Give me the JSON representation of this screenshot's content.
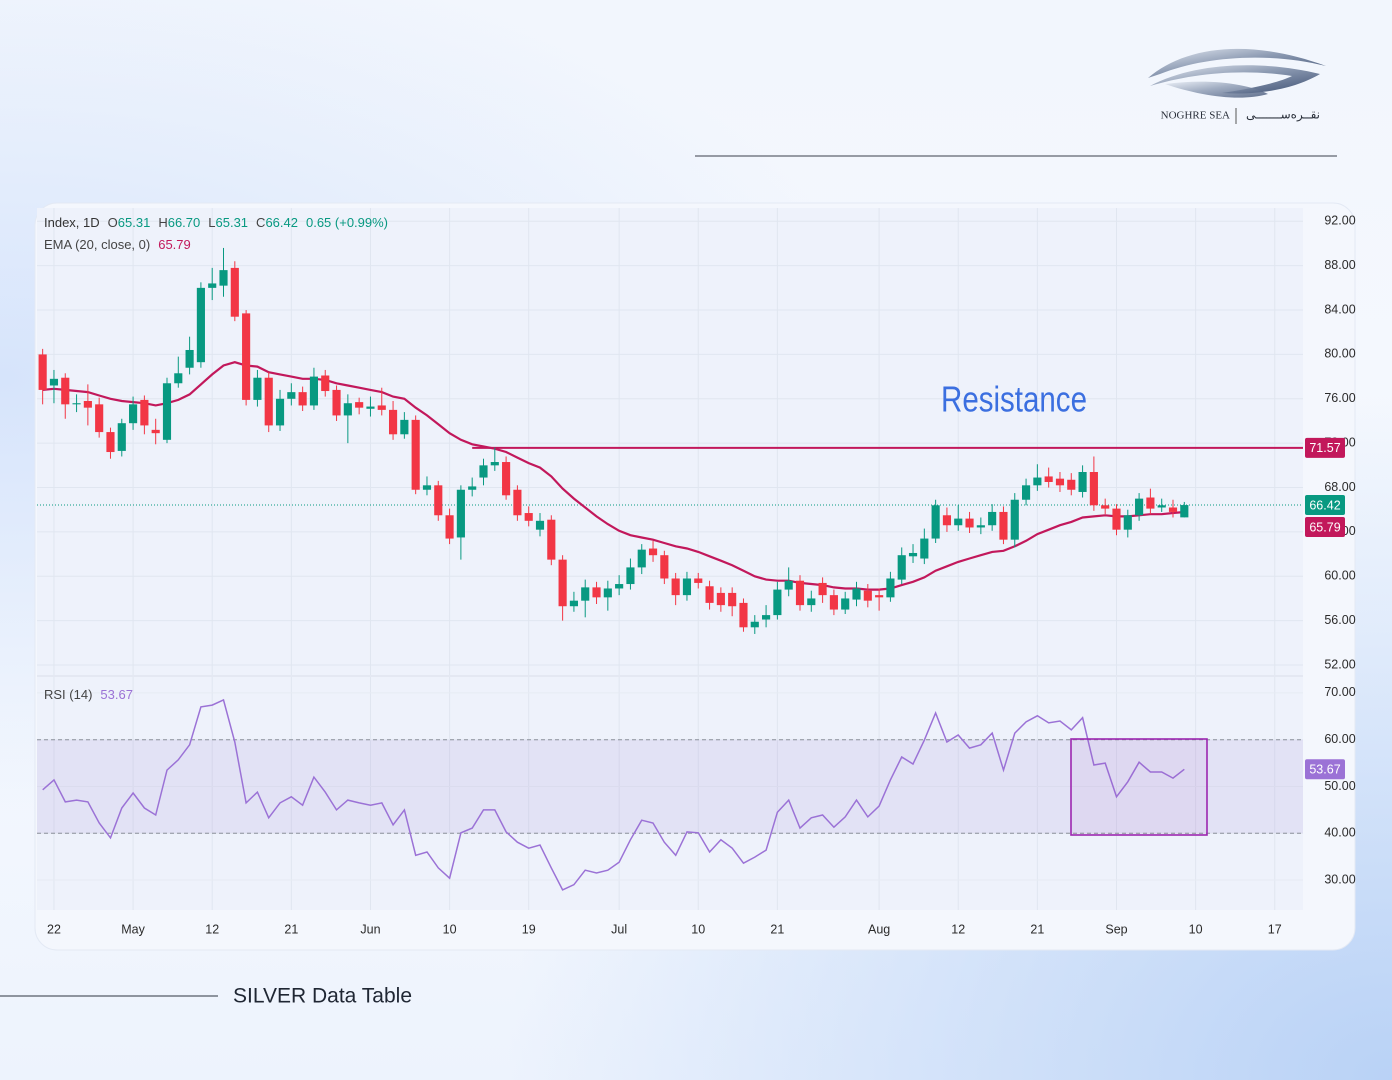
{
  "logo": {
    "name": "NOGHRE SEA",
    "name_fa": "نقــره‌ســـــــی"
  },
  "footer": "SILVER Data Table",
  "chart_data": [
    {
      "type": "candlestick",
      "title": "Index, 1D",
      "legend": [
        {
          "key": "O",
          "label": "65.31"
        },
        {
          "key": "H",
          "label": "66.70"
        },
        {
          "key": "L",
          "label": "65.31"
        },
        {
          "key": "C",
          "label": "66.42"
        }
      ],
      "change": "0.65 (+0.99%)",
      "up_color": "#089981",
      "down_color": "#f23645",
      "xlim": [
        -0.5,
        111.5
      ],
      "ylim": [
        51.1,
        93.2
      ],
      "yticks": [
        {
          "value": 52,
          "label": "52.00"
        },
        {
          "value": 56,
          "label": "56.00"
        },
        {
          "value": 60,
          "label": "60.00"
        },
        {
          "value": 64,
          "label": "64.00"
        },
        {
          "value": 68,
          "label": "68.00"
        },
        {
          "value": 72,
          "label": "72.00"
        },
        {
          "value": 76,
          "label": "76.00"
        },
        {
          "value": 80,
          "label": "80.00"
        },
        {
          "value": 84,
          "label": "84.00"
        },
        {
          "value": 88,
          "label": "88.00"
        },
        {
          "value": 92,
          "label": "92.00"
        }
      ],
      "open": [
        80.0,
        77.2,
        77.9,
        75.5,
        75.8,
        75.5,
        73.0,
        71.3,
        73.8,
        75.9,
        73.2,
        72.3,
        77.4,
        78.8,
        79.3,
        86.0,
        86.2,
        87.8,
        83.7,
        75.9,
        77.9,
        73.6,
        76.0,
        76.6,
        75.4,
        78.1,
        76.8,
        74.5,
        75.7,
        75.1,
        75.4,
        75.0,
        72.8,
        74.1,
        67.8,
        68.2,
        65.5,
        63.5,
        67.8,
        68.9,
        70.0,
        70.3,
        67.8,
        65.7,
        64.2,
        65.1,
        61.5,
        57.3,
        57.8,
        59.0,
        58.1,
        58.9,
        59.3,
        60.8,
        62.5,
        61.9,
        59.8,
        58.3,
        59.8,
        59.1,
        58.5,
        58.5,
        57.6,
        55.4,
        56.1,
        56.5,
        58.8,
        59.6,
        57.4,
        59.4,
        58.3,
        57.0,
        57.9,
        58.7,
        58.3,
        58.1,
        59.7,
        61.8,
        61.6,
        63.4,
        65.5,
        64.6,
        65.2,
        64.4,
        64.6,
        65.8,
        63.3,
        66.9,
        68.2,
        69.0,
        68.8,
        68.7,
        67.6,
        69.4,
        66.4,
        66.1,
        64.2,
        65.5,
        67.1,
        66.2,
        66.2,
        65.31
      ],
      "high": [
        80.5,
        78.6,
        78.3,
        76.4,
        77.3,
        76.1,
        73.4,
        74.2,
        76.2,
        76.3,
        74.2,
        77.9,
        79.8,
        81.6,
        86.5,
        87.8,
        89.6,
        88.4,
        84.0,
        78.6,
        78.4,
        76.8,
        77.4,
        77.1,
        78.8,
        78.6,
        77.2,
        76.4,
        76.1,
        76.2,
        77.0,
        75.8,
        74.8,
        74.5,
        69.0,
        68.6,
        66.1,
        68.2,
        68.9,
        70.6,
        71.6,
        70.8,
        68.2,
        66.3,
        65.7,
        65.5,
        61.9,
        58.6,
        59.7,
        59.5,
        59.6,
        60.1,
        61.6,
        62.9,
        63.2,
        62.3,
        60.3,
        60.4,
        60.3,
        59.6,
        59.0,
        59.0,
        58.0,
        56.5,
        57.4,
        59.5,
        60.8,
        60.1,
        58.7,
        59.9,
        58.8,
        58.6,
        59.5,
        59.3,
        58.9,
        60.4,
        62.6,
        62.9,
        64.3,
        66.9,
        66.2,
        66.4,
        65.8,
        65.3,
        66.5,
        66.3,
        67.5,
        68.8,
        70.1,
        69.8,
        69.4,
        69.3,
        70.0,
        70.8,
        67.0,
        66.5,
        66.0,
        67.5,
        67.9,
        67.0,
        66.9,
        66.7
      ],
      "low": [
        75.5,
        75.6,
        74.2,
        74.8,
        73.6,
        72.5,
        70.6,
        70.8,
        73.2,
        72.8,
        71.9,
        72.0,
        77.0,
        78.2,
        78.8,
        84.9,
        85.2,
        83.0,
        75.4,
        75.3,
        73.0,
        73.1,
        75.4,
        74.9,
        75.0,
        76.2,
        74.0,
        72.0,
        74.6,
        74.4,
        74.5,
        72.3,
        72.4,
        67.4,
        67.3,
        65.0,
        62.9,
        61.5,
        67.2,
        68.2,
        69.5,
        66.9,
        65.0,
        64.5,
        63.6,
        61.0,
        56.0,
        56.8,
        56.3,
        57.5,
        56.9,
        58.3,
        58.8,
        60.2,
        61.3,
        59.3,
        57.4,
        57.8,
        58.9,
        57.0,
        56.8,
        56.4,
        55.0,
        54.8,
        55.4,
        56.1,
        58.2,
        56.9,
        56.8,
        57.6,
        56.5,
        56.6,
        57.3,
        57.2,
        56.9,
        57.7,
        59.3,
        61.2,
        61.1,
        63.0,
        64.0,
        64.1,
        63.9,
        63.8,
        64.1,
        62.9,
        62.6,
        66.4,
        67.7,
        68.0,
        67.6,
        67.3,
        67.1,
        65.9,
        65.6,
        63.7,
        63.5,
        65.0,
        65.6,
        65.8,
        65.3,
        65.31
      ],
      "close": [
        76.8,
        77.8,
        75.5,
        75.6,
        75.2,
        73.0,
        71.2,
        73.8,
        75.5,
        73.6,
        72.9,
        77.4,
        78.3,
        80.4,
        86.0,
        86.4,
        87.6,
        83.4,
        75.9,
        77.9,
        73.6,
        76.0,
        76.6,
        75.4,
        78.0,
        76.7,
        74.5,
        75.6,
        75.2,
        75.3,
        75.0,
        72.8,
        74.1,
        67.8,
        68.2,
        65.5,
        63.4,
        67.8,
        68.1,
        70.0,
        70.3,
        67.3,
        65.5,
        65.0,
        65.0,
        61.5,
        57.3,
        57.8,
        59.0,
        58.1,
        58.9,
        59.3,
        60.8,
        62.4,
        61.9,
        59.8,
        58.3,
        59.8,
        59.4,
        57.6,
        57.4,
        57.3,
        55.4,
        55.9,
        56.5,
        58.8,
        59.6,
        57.4,
        58.0,
        58.3,
        57.0,
        58.0,
        58.9,
        57.8,
        58.1,
        59.8,
        61.9,
        62.1,
        63.4,
        66.4,
        64.6,
        65.2,
        64.4,
        64.6,
        65.8,
        63.3,
        66.9,
        68.2,
        68.9,
        68.5,
        68.2,
        67.8,
        69.4,
        66.4,
        66.1,
        64.2,
        65.5,
        67.0,
        66.1,
        66.4,
        65.8,
        66.42
      ],
      "series": [
        {
          "name": "EMA (20, close, 0)",
          "color": "#c2185b",
          "values": [
            76.8,
            76.9,
            76.8,
            76.7,
            76.6,
            76.3,
            76.0,
            75.8,
            75.7,
            75.6,
            75.4,
            75.6,
            75.9,
            76.4,
            77.3,
            78.2,
            79.0,
            79.3,
            79.0,
            78.9,
            78.4,
            78.2,
            78.0,
            77.8,
            77.8,
            77.7,
            77.4,
            77.2,
            77.0,
            76.8,
            76.6,
            76.2,
            76.0,
            75.2,
            74.5,
            73.7,
            72.9,
            72.3,
            71.9,
            71.7,
            71.5,
            71.2,
            70.7,
            70.2,
            69.8,
            69.0,
            67.9,
            67.0,
            66.2,
            65.4,
            64.7,
            64.1,
            63.7,
            63.5,
            63.3,
            63.0,
            62.7,
            62.5,
            62.2,
            61.8,
            61.4,
            61.0,
            60.5,
            60.0,
            59.7,
            59.6,
            59.6,
            59.4,
            59.3,
            59.2,
            59.0,
            58.9,
            58.9,
            58.8,
            58.8,
            58.9,
            59.2,
            59.5,
            59.9,
            60.5,
            60.9,
            61.3,
            61.6,
            61.9,
            62.2,
            62.3,
            62.7,
            63.2,
            63.8,
            64.2,
            64.6,
            64.9,
            65.3,
            65.4,
            65.5,
            65.4,
            65.4,
            65.5,
            65.6,
            65.6,
            65.7,
            65.79
          ]
        }
      ],
      "annotations": [
        {
          "text": "Resistance",
          "value": 71.57,
          "start": 38,
          "color": "#c2185b",
          "text_color": "#3b6fe0"
        }
      ]
    },
    {
      "type": "line",
      "xlim": [
        -0.5,
        111.5
      ],
      "ylim": [
        23.6,
        73.4
      ],
      "yticks": [
        {
          "value": 30,
          "label": "30.00"
        },
        {
          "value": 40,
          "label": "40.00"
        },
        {
          "value": 50,
          "label": "50.00"
        },
        {
          "value": 60,
          "label": "60.00"
        },
        {
          "value": 70,
          "label": "70.00"
        }
      ],
      "band": [
        40,
        60
      ],
      "xticks": [
        {
          "value": 1,
          "label": "22"
        },
        {
          "value": 8,
          "label": "May"
        },
        {
          "value": 15,
          "label": "12"
        },
        {
          "value": 22,
          "label": "21"
        },
        {
          "value": 29,
          "label": "Jun"
        },
        {
          "value": 36,
          "label": "10"
        },
        {
          "value": 43,
          "label": "19"
        },
        {
          "value": 51,
          "label": "Jul"
        },
        {
          "value": 58,
          "label": "10"
        },
        {
          "value": 65,
          "label": "21"
        },
        {
          "value": 74,
          "label": "Aug"
        },
        {
          "value": 81,
          "label": "12"
        },
        {
          "value": 88,
          "label": "21"
        },
        {
          "value": 95,
          "label": "Sep"
        },
        {
          "value": 102,
          "label": "10"
        },
        {
          "value": 109,
          "label": "17"
        }
      ],
      "series": [
        {
          "name": "RSI (14)",
          "color": "#9b72d6",
          "values": [
            49.3,
            51.4,
            46.7,
            47.1,
            46.7,
            42.2,
            39.0,
            45.4,
            48.6,
            45.4,
            43.9,
            53.5,
            55.7,
            58.9,
            67.0,
            67.4,
            68.5,
            59.5,
            46.5,
            48.8,
            43.3,
            46.5,
            47.8,
            46.0,
            52.0,
            48.8,
            45.0,
            47.1,
            46.5,
            46.0,
            46.5,
            41.8,
            45.0,
            35.3,
            36.0,
            32.6,
            30.4,
            40.1,
            41.1,
            45.0,
            45.0,
            40.3,
            38.1,
            36.8,
            37.5,
            32.6,
            27.9,
            29.0,
            32.1,
            31.5,
            32.1,
            33.8,
            38.6,
            42.8,
            42.2,
            38.1,
            35.3,
            40.3,
            40.1,
            36.0,
            38.6,
            36.8,
            33.6,
            34.9,
            36.4,
            44.5,
            47.1,
            41.1,
            43.3,
            43.9,
            41.3,
            43.5,
            47.1,
            43.5,
            45.8,
            51.4,
            56.3,
            54.8,
            59.9,
            65.7,
            59.5,
            61.0,
            58.2,
            58.9,
            61.4,
            53.5,
            61.4,
            63.8,
            65.1,
            63.6,
            64.0,
            62.1,
            64.7,
            54.6,
            55.0,
            47.8,
            51.0,
            55.2,
            53.1,
            53.1,
            51.8,
            53.67
          ]
        }
      ]
    }
  ]
}
